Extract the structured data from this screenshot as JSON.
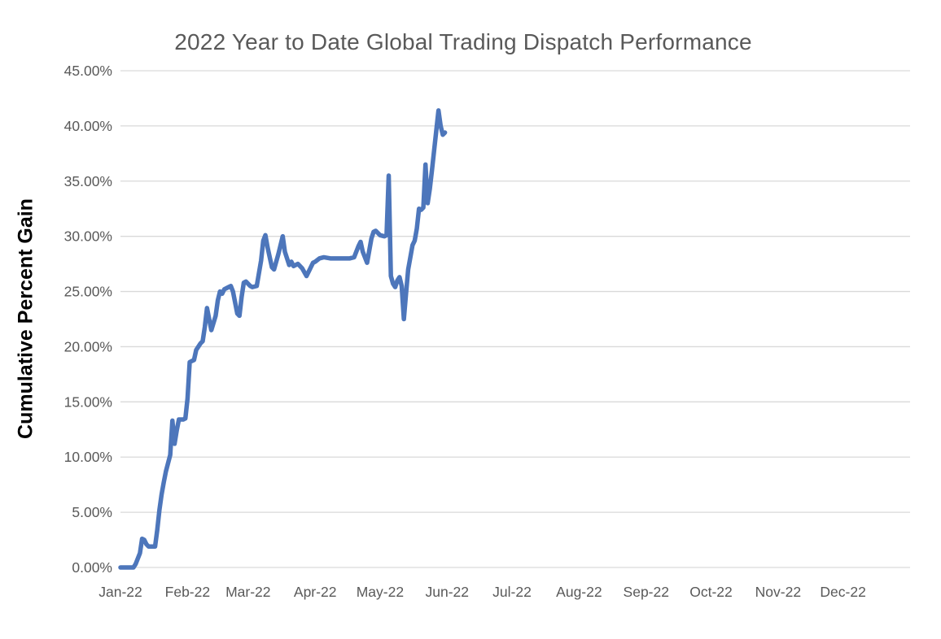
{
  "chart_data": {
    "type": "line",
    "title": "2022 Year to Date Global Trading Dispatch Performance",
    "xlabel": "",
    "ylabel": "Cumulative Percent Gain",
    "ylim": [
      0,
      45
    ],
    "y_tick_step_percent": 5,
    "y_tick_labels": [
      "0.00%",
      "5.00%",
      "10.00%",
      "15.00%",
      "20.00%",
      "25.00%",
      "30.00%",
      "35.00%",
      "40.00%",
      "45.00%"
    ],
    "x_tick_labels": [
      "Jan-22",
      "Feb-22",
      "Mar-22",
      "Apr-22",
      "May-22",
      "Jun-22",
      "Jul-22",
      "Aug-22",
      "Sep-22",
      "Oct-22",
      "Nov-22",
      "Dec-22"
    ],
    "x_tick_day_offsets": [
      0,
      31,
      59,
      90,
      120,
      151,
      181,
      212,
      243,
      273,
      304,
      334
    ],
    "x_range_days": [
      0,
      365
    ],
    "grid": true,
    "legend_position": "none",
    "series": [
      {
        "name": "Cumulative Percent Gain",
        "points_day_value": [
          [
            0,
            0
          ],
          [
            2,
            0
          ],
          [
            3,
            0
          ],
          [
            4,
            0
          ],
          [
            5,
            0
          ],
          [
            6,
            0
          ],
          [
            7,
            0.3
          ],
          [
            9,
            1.3
          ],
          [
            10,
            2.6
          ],
          [
            11,
            2.5
          ],
          [
            12,
            2.1
          ],
          [
            13,
            1.9
          ],
          [
            16,
            1.9
          ],
          [
            17,
            3.4
          ],
          [
            18,
            5.2
          ],
          [
            19,
            6.6
          ],
          [
            20,
            7.7
          ],
          [
            21,
            8.7
          ],
          [
            23,
            10.2
          ],
          [
            24,
            13.3
          ],
          [
            25,
            11.2
          ],
          [
            26,
            12.4
          ],
          [
            27,
            13.4
          ],
          [
            29,
            13.4
          ],
          [
            30,
            13.5
          ],
          [
            31,
            15.3
          ],
          [
            32,
            18.6
          ],
          [
            33,
            18.7
          ],
          [
            34,
            18.8
          ],
          [
            35,
            19.7
          ],
          [
            37,
            20.3
          ],
          [
            38,
            20.5
          ],
          [
            39,
            21.8
          ],
          [
            40,
            23.5
          ],
          [
            41,
            22.5
          ],
          [
            42,
            21.5
          ],
          [
            44,
            22.8
          ],
          [
            45,
            24.2
          ],
          [
            46,
            25.0
          ],
          [
            47,
            24.8
          ],
          [
            48,
            25.2
          ],
          [
            50,
            25.4
          ],
          [
            51,
            25.5
          ],
          [
            52,
            25.0
          ],
          [
            54,
            23.0
          ],
          [
            55,
            22.8
          ],
          [
            56,
            24.5
          ],
          [
            57,
            25.8
          ],
          [
            58,
            25.9
          ],
          [
            60,
            25.5
          ],
          [
            61,
            25.4
          ],
          [
            63,
            25.5
          ],
          [
            65,
            27.8
          ],
          [
            66,
            29.6
          ],
          [
            67,
            30.1
          ],
          [
            68,
            29.0
          ],
          [
            70,
            27.2
          ],
          [
            71,
            27.0
          ],
          [
            73,
            28.4
          ],
          [
            75,
            30.0
          ],
          [
            76,
            28.6
          ],
          [
            78,
            27.4
          ],
          [
            79,
            27.7
          ],
          [
            80,
            27.3
          ],
          [
            82,
            27.5
          ],
          [
            84,
            27.1
          ],
          [
            86,
            26.4
          ],
          [
            88,
            27.2
          ],
          [
            89,
            27.6
          ],
          [
            90,
            27.7
          ],
          [
            92,
            28.0
          ],
          [
            94,
            28.1
          ],
          [
            97,
            28.0
          ],
          [
            100,
            28.0
          ],
          [
            103,
            28.0
          ],
          [
            106,
            28.0
          ],
          [
            108,
            28.1
          ],
          [
            110,
            29.1
          ],
          [
            111,
            29.5
          ],
          [
            112,
            28.6
          ],
          [
            114,
            27.6
          ],
          [
            116,
            29.8
          ],
          [
            117,
            30.4
          ],
          [
            118,
            30.5
          ],
          [
            120,
            30.1
          ],
          [
            122,
            30.0
          ],
          [
            123,
            30.1
          ],
          [
            124,
            35.5
          ],
          [
            125,
            26.4
          ],
          [
            126,
            25.7
          ],
          [
            127,
            25.4
          ],
          [
            128,
            26.0
          ],
          [
            129,
            26.3
          ],
          [
            130,
            25.5
          ],
          [
            131,
            22.5
          ],
          [
            132,
            24.8
          ],
          [
            133,
            27.0
          ],
          [
            134,
            28.1
          ],
          [
            135,
            29.2
          ],
          [
            136,
            29.6
          ],
          [
            137,
            30.7
          ],
          [
            138,
            32.5
          ],
          [
            139,
            32.4
          ],
          [
            140,
            32.6
          ],
          [
            141,
            36.5
          ],
          [
            142,
            33.0
          ],
          [
            143,
            34.3
          ],
          [
            144,
            36.0
          ],
          [
            145,
            37.8
          ],
          [
            146,
            39.6
          ],
          [
            147,
            41.4
          ],
          [
            148,
            40.0
          ],
          [
            149,
            39.2
          ],
          [
            150,
            39.4
          ]
        ]
      }
    ]
  },
  "colors": {
    "background": "#ffffff",
    "title_text": "#595959",
    "axis_tick_text": "#595959",
    "y_axis_title_text": "#000000",
    "gridline": "#d9d9d9",
    "series_line": "#4d76bb"
  }
}
